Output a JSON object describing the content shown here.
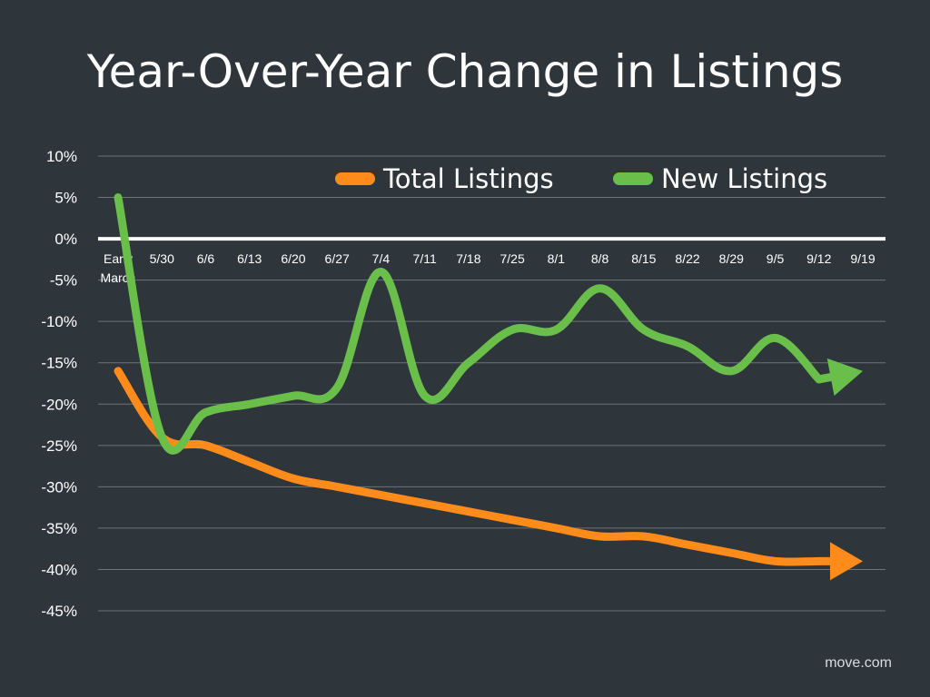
{
  "chart_data": {
    "type": "line",
    "title": "Year-Over-Year Change in Listings",
    "categories": [
      "Early March",
      "5/30",
      "6/6",
      "6/13",
      "6/20",
      "6/27",
      "7/4",
      "7/11",
      "7/18",
      "7/25",
      "8/1",
      "8/8",
      "8/15",
      "8/22",
      "8/29",
      "9/5",
      "9/12",
      "9/19"
    ],
    "series": [
      {
        "name": "Total Listings",
        "color": "#ff8c1a",
        "values": [
          -16,
          -24,
          -25,
          -27,
          -29,
          -30,
          -31,
          -32,
          -33,
          -34,
          -35,
          -36,
          -36,
          -37,
          -38,
          -39,
          -39,
          -39
        ]
      },
      {
        "name": "New Listings",
        "color": "#6abf4b",
        "values": [
          5,
          -24,
          -21,
          -20,
          -19,
          -18,
          -4,
          -19,
          -15,
          -11,
          -11,
          -6,
          -11,
          -13,
          -16,
          -12,
          -17,
          -16
        ]
      }
    ],
    "ylim": [
      -45,
      10
    ],
    "yticks": [
      "10%",
      "5%",
      "0%",
      "-5%",
      "-10%",
      "-15%",
      "-20%",
      "-25%",
      "-30%",
      "-35%",
      "-40%",
      "-45%"
    ],
    "ytick_values": [
      10,
      5,
      0,
      -5,
      -10,
      -15,
      -20,
      -25,
      -30,
      -35,
      -40,
      -45
    ],
    "grid": true,
    "legend_position": "top-center"
  },
  "source": "move.com"
}
